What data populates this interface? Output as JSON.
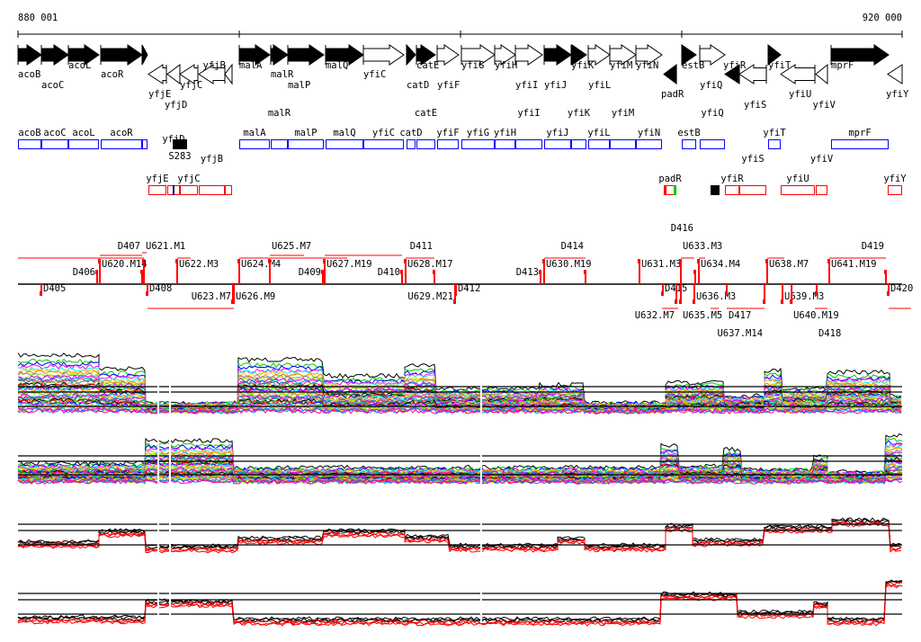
{
  "ruler": {
    "start_label": "880 001",
    "end_label": "920 000",
    "start": 880001,
    "end": 920000
  },
  "colors": {
    "forward_box": "#0000ff",
    "reverse_box": "#ff0000",
    "transcript": "#ff0000",
    "gene_fill": "#000000",
    "marker_green": "#00cc00"
  },
  "genes": [
    {
      "name": "acoB",
      "start": 880001,
      "end": 881059,
      "strand": "+",
      "filled": true
    },
    {
      "name": "acoC",
      "start": 881059,
      "end": 882280,
      "strand": "+",
      "filled": true
    },
    {
      "name": "acoL",
      "start": 882280,
      "end": 883663,
      "strand": "+",
      "filled": true
    },
    {
      "name": "acoR",
      "start": 883744,
      "end": 885616,
      "strand": "+",
      "filled": true
    },
    {
      "name": "",
      "start": 885616,
      "end": 885860,
      "strand": "+",
      "filled": true
    },
    {
      "name": "yfjE",
      "start": 885901,
      "end": 886715,
      "strand": "-",
      "filled": false
    },
    {
      "name": "yfjD",
      "start": 886755,
      "end": 887325,
      "strand": "-",
      "filled": false
    },
    {
      "name": "yfjC",
      "start": 887325,
      "end": 888139,
      "strand": "-",
      "filled": false
    },
    {
      "name": "yfjB",
      "start": 888180,
      "end": 889360,
      "strand": "-",
      "filled": false
    },
    {
      "name": "",
      "start": 889360,
      "end": 889686,
      "strand": "-",
      "filled": false
    },
    {
      "name": "malA",
      "start": 890011,
      "end": 891394,
      "strand": "+",
      "filled": true
    },
    {
      "name": "malR",
      "start": 891435,
      "end": 892208,
      "strand": "+",
      "filled": true
    },
    {
      "name": "malP",
      "start": 892208,
      "end": 893836,
      "strand": "+",
      "filled": true
    },
    {
      "name": "malQ",
      "start": 893917,
      "end": 895626,
      "strand": "+",
      "filled": true
    },
    {
      "name": "yfiC",
      "start": 895626,
      "end": 897457,
      "strand": "+",
      "filled": false
    },
    {
      "name": "catD",
      "start": 897579,
      "end": 897986,
      "strand": "+",
      "filled": true
    },
    {
      "name": "catE",
      "start": 898027,
      "end": 898881,
      "strand": "+",
      "filled": true
    },
    {
      "name": "yfiF",
      "start": 898963,
      "end": 899939,
      "strand": "+",
      "filled": false
    },
    {
      "name": "yfiG",
      "start": 900061,
      "end": 901567,
      "strand": "+",
      "filled": false
    },
    {
      "name": "yfiH",
      "start": 901567,
      "end": 902503,
      "strand": "+",
      "filled": false
    },
    {
      "name": "yfiI",
      "start": 902503,
      "end": 903724,
      "strand": "+",
      "filled": false
    },
    {
      "name": "yfiJ",
      "start": 903805,
      "end": 905026,
      "strand": "+",
      "filled": true
    },
    {
      "name": "yfiK",
      "start": 905026,
      "end": 905717,
      "strand": "+",
      "filled": true
    },
    {
      "name": "yfiL",
      "start": 905799,
      "end": 906776,
      "strand": "+",
      "filled": false
    },
    {
      "name": "yfiM",
      "start": 906776,
      "end": 907956,
      "strand": "+",
      "filled": false
    },
    {
      "name": "yfiN",
      "start": 907956,
      "end": 909136,
      "strand": "+",
      "filled": false
    },
    {
      "name": "padR",
      "start": 909218,
      "end": 909788,
      "strand": "-",
      "filled": true
    },
    {
      "name": "estB",
      "start": 910032,
      "end": 910683,
      "strand": "+",
      "filled": true
    },
    {
      "name": "yfiQ",
      "start": 910846,
      "end": 911985,
      "strand": "+",
      "filled": false
    },
    {
      "name": "yfiR",
      "start": 911985,
      "end": 912636,
      "strand": "-",
      "filled": true
    },
    {
      "name": "yfiS",
      "start": 912636,
      "end": 913857,
      "strand": "-",
      "filled": false
    },
    {
      "name": "yfiT",
      "start": 913938,
      "end": 914508,
      "strand": "+",
      "filled": true
    },
    {
      "name": "yfiU",
      "start": 914508,
      "end": 916054,
      "strand": "-",
      "filled": false
    },
    {
      "name": "yfiV",
      "start": 916094,
      "end": 916623,
      "strand": "-",
      "filled": false
    },
    {
      "name": "mprF",
      "start": 916786,
      "end": 919390,
      "strand": "+",
      "filled": true
    },
    {
      "name": "yfiY",
      "start": 919349,
      "end": 920000,
      "strand": "-",
      "filled": false
    }
  ],
  "markers": [
    {
      "label": "S283",
      "start": 887000,
      "end": 887650,
      "row": "forward"
    },
    {
      "label": "",
      "start": 911334,
      "end": 911740,
      "row": "reverse"
    }
  ],
  "transcript_features": [
    {
      "label": "D406",
      "pos": 883582,
      "side": "above",
      "align": "end"
    },
    {
      "label": "U620.M14",
      "pos": 883704,
      "side": "above",
      "align": "start"
    },
    {
      "label": "D407",
      "pos": 885616,
      "side": "above",
      "align": "end"
    },
    {
      "label": "U621.M1",
      "pos": 885698,
      "side": "above",
      "align": "start"
    },
    {
      "label": "U622.M3",
      "pos": 887203,
      "side": "above",
      "align": "start"
    },
    {
      "label": "U624.M4",
      "pos": 890011,
      "side": "above",
      "align": "start"
    },
    {
      "label": "U625.M7",
      "pos": 891394,
      "side": "above",
      "align": "start"
    },
    {
      "label": "D409",
      "pos": 893795,
      "side": "above",
      "align": "end"
    },
    {
      "label": "U627.M19",
      "pos": 893877,
      "side": "above",
      "align": "start"
    },
    {
      "label": "D410",
      "pos": 897376,
      "side": "above",
      "align": "end"
    },
    {
      "label": "U628.M17",
      "pos": 897539,
      "side": "above",
      "align": "start"
    },
    {
      "label": "D411",
      "pos": 898841,
      "side": "above",
      "align": "end"
    },
    {
      "label": "D413",
      "pos": 903642,
      "side": "above",
      "align": "end"
    },
    {
      "label": "U630.M19",
      "pos": 903805,
      "side": "above",
      "align": "start"
    },
    {
      "label": "D414",
      "pos": 905676,
      "side": "above",
      "align": "end"
    },
    {
      "label": "U631.M3",
      "pos": 908118,
      "side": "above",
      "align": "start"
    },
    {
      "label": "U633.M3",
      "pos": 909990,
      "side": "above",
      "align": "start"
    },
    {
      "label": "D416",
      "pos": 910641,
      "side": "above",
      "align": "end"
    },
    {
      "label": "U634.M4",
      "pos": 910804,
      "side": "above",
      "align": "start"
    },
    {
      "label": "U638.M7",
      "pos": 913897,
      "side": "above",
      "align": "start"
    },
    {
      "label": "U641.M19",
      "pos": 916705,
      "side": "above",
      "align": "start"
    },
    {
      "label": "D419",
      "pos": 919268,
      "side": "above",
      "align": "end"
    },
    {
      "label": "D405",
      "pos": 881059,
      "side": "below",
      "align": "start"
    },
    {
      "label": "D408",
      "pos": 885860,
      "side": "below",
      "align": "start"
    },
    {
      "label": "U623.M7",
      "pos": 889726,
      "side": "below",
      "align": "end"
    },
    {
      "label": "U626.M9",
      "pos": 889767,
      "side": "below",
      "align": "start"
    },
    {
      "label": "U629.M21",
      "pos": 899776,
      "side": "below",
      "align": "end"
    },
    {
      "label": "D412",
      "pos": 899817,
      "side": "below",
      "align": "start"
    },
    {
      "label": "D415",
      "pos": 909177,
      "side": "below",
      "align": "start"
    },
    {
      "label": "U632.M7",
      "pos": 909788,
      "side": "below",
      "align": "end"
    },
    {
      "label": "U635.M5",
      "pos": 909990,
      "side": "below",
      "align": "start"
    },
    {
      "label": "U636.M3",
      "pos": 910600,
      "side": "below",
      "align": "start"
    },
    {
      "label": "D417",
      "pos": 912066,
      "side": "below",
      "align": "start"
    },
    {
      "label": "U637.M14",
      "pos": 913775,
      "side": "below",
      "align": "end"
    },
    {
      "label": "U639.M3",
      "pos": 914589,
      "side": "below",
      "align": "start"
    },
    {
      "label": "U640.M19",
      "pos": 915000,
      "side": "below",
      "align": "start"
    },
    {
      "label": "D418",
      "pos": 916135,
      "side": "below",
      "align": "start"
    },
    {
      "label": "D420",
      "pos": 919390,
      "side": "below",
      "align": "start"
    }
  ],
  "transcript_spans": [
    {
      "start": 880001,
      "end": 885698,
      "side": "above",
      "row": 0
    },
    {
      "start": 883704,
      "end": 885616,
      "side": "above",
      "row": 1
    },
    {
      "start": 885616,
      "end": 885820,
      "side": "above",
      "row": 2
    },
    {
      "start": 887203,
      "end": 887813,
      "side": "above",
      "row": 0
    },
    {
      "start": 890011,
      "end": 894895,
      "side": "above",
      "row": 0
    },
    {
      "start": 891394,
      "end": 892940,
      "side": "above",
      "row": 1
    },
    {
      "start": 893877,
      "end": 897376,
      "side": "above",
      "row": 1
    },
    {
      "start": 897539,
      "end": 898841,
      "side": "above",
      "row": 0
    },
    {
      "start": 903805,
      "end": 905676,
      "side": "above",
      "row": 0
    },
    {
      "start": 909990,
      "end": 910600,
      "side": "above",
      "row": 0
    },
    {
      "start": 910804,
      "end": 911090,
      "side": "above",
      "row": 0
    },
    {
      "start": 913897,
      "end": 914670,
      "side": "above",
      "row": 0
    },
    {
      "start": 916705,
      "end": 919268,
      "side": "above",
      "row": 0
    },
    {
      "start": 885860,
      "end": 889767,
      "side": "below",
      "row": 0
    },
    {
      "start": 909136,
      "end": 909870,
      "side": "below",
      "row": 0
    },
    {
      "start": 911334,
      "end": 911700,
      "side": "below",
      "row": 0
    },
    {
      "start": 912066,
      "end": 913775,
      "side": "below",
      "row": 0
    },
    {
      "start": 916054,
      "end": 916623,
      "side": "below",
      "row": 0
    },
    {
      "start": 919390,
      "end": 920400,
      "side": "below",
      "row": 0
    }
  ],
  "expression_palette": [
    "#ff0000",
    "#00cc00",
    "#0000ff",
    "#ff00ff",
    "#00ffff",
    "#ffcc00",
    "#ff8800",
    "#888888",
    "#99ff00",
    "#cc00ff",
    "#0088ff",
    "#ff0088",
    "#00aa88",
    "#aaaa00",
    "#000000"
  ]
}
